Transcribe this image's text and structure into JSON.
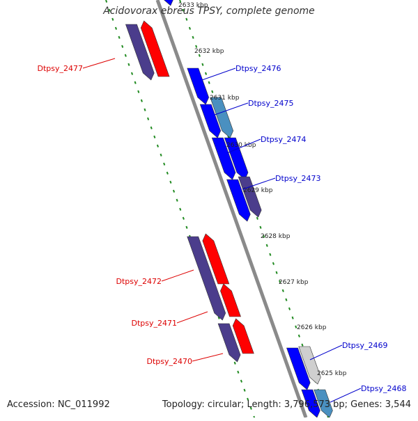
{
  "title": "Acidovorax ebreus TPSY, complete genome",
  "accession": "Accession: NC_011992",
  "summary": "Topology: circular; Length: 3,796,573 bp; Genes: 3,544",
  "colors": {
    "forward": "#0000ff",
    "reverse": "#ff0000",
    "forward_light": "#4a90c0",
    "forward_gray": "#cfcfcf",
    "muted": "#4b3d8c",
    "backbone": "#8a8a8a",
    "ruler": "#228b22",
    "label_fwd": "#0000cc",
    "label_rev": "#dd0000"
  },
  "ticks": [
    "2633 kbp",
    "2632 kbp",
    "2631 kbp",
    "2630 kbp",
    "2629 kbp",
    "2628 kbp",
    "2627 kbp",
    "2626 kbp",
    "2625 kbp"
  ],
  "gene_labels_forward": [
    "Dtpsy_2476",
    "Dtpsy_2475",
    "Dtpsy_2474",
    "Dtpsy_2473",
    "Dtpsy_2469",
    "Dtpsy_2468"
  ],
  "gene_labels_reverse": [
    "Dtpsy_2477",
    "Dtpsy_2472",
    "Dtpsy_2471",
    "Dtpsy_2470"
  ]
}
